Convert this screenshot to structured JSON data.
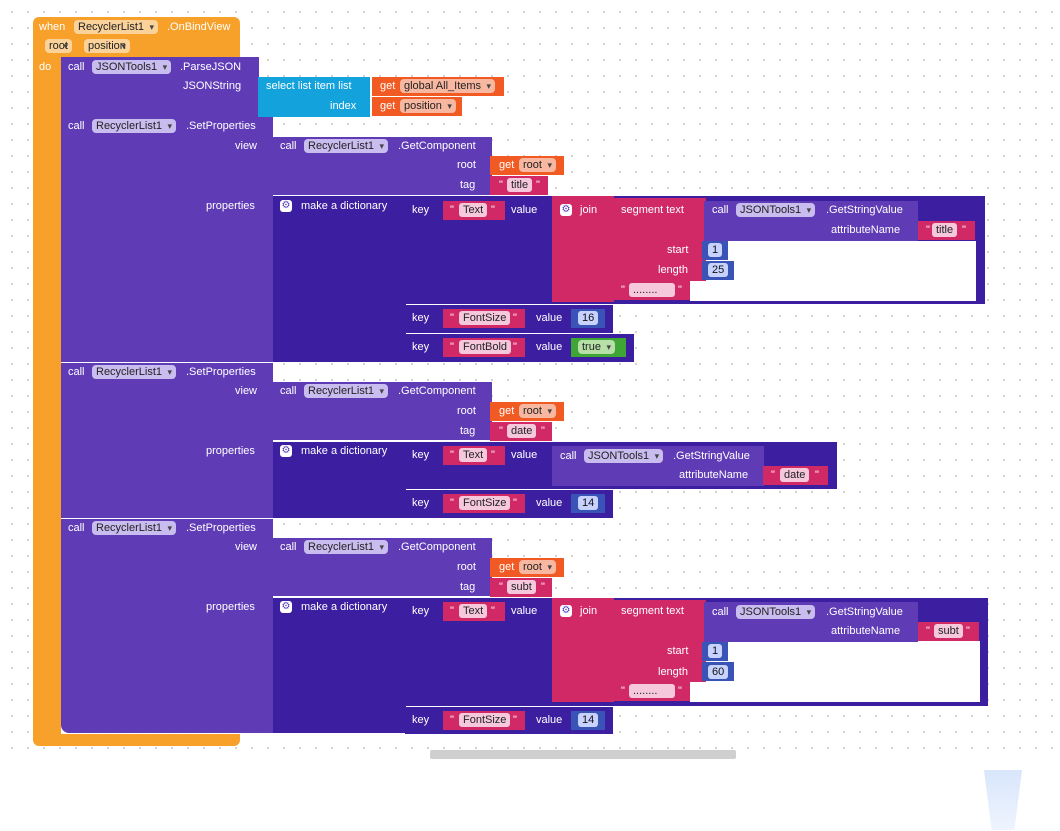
{
  "event": {
    "when": "when",
    "component": "RecyclerList1",
    "event": ".OnBindView",
    "params": [
      "root",
      "position"
    ],
    "do": "do"
  },
  "parse": {
    "call": "call",
    "component": "JSONTools1",
    "method": ".ParseJSON",
    "arg_label": "JSONString",
    "select": "select list item  list",
    "index_label": "index",
    "get": "get",
    "list_var": "global All_Items",
    "index_var": "position"
  },
  "sp": [
    {
      "call": "call",
      "component": "RecyclerList1",
      "method": ".SetProperties",
      "view_label": "view",
      "properties_label": "properties",
      "gc": {
        "call": "call",
        "component": "RecyclerList1",
        "method": ".GetComponent",
        "root_label": "root",
        "tag_label": "tag",
        "get": "get",
        "root_var": "root",
        "tag": "title"
      },
      "dict": "make a dictionary",
      "entries": [
        {
          "key_label": "key",
          "key": "Text",
          "value_label": "value",
          "join": "join",
          "segment": "segment  text",
          "call": "call",
          "component": "JSONTools1",
          "method": ".GetStringValue",
          "attr_label": "attributeName",
          "attr": "title",
          "start_label": "start",
          "start": "1",
          "length_label": "length",
          "length": "25",
          "suffix": "........"
        },
        {
          "key_label": "key",
          "key": "FontSize",
          "value_label": "value",
          "num": "16"
        },
        {
          "key_label": "key",
          "key": "FontBold",
          "value_label": "value",
          "bool": "true"
        }
      ]
    },
    {
      "call": "call",
      "component": "RecyclerList1",
      "method": ".SetProperties",
      "view_label": "view",
      "properties_label": "properties",
      "gc": {
        "call": "call",
        "component": "RecyclerList1",
        "method": ".GetComponent",
        "root_label": "root",
        "tag_label": "tag",
        "get": "get",
        "root_var": "root",
        "tag": "date"
      },
      "dict": "make a dictionary",
      "entries": [
        {
          "key_label": "key",
          "key": "Text",
          "value_label": "value",
          "call": "call",
          "component": "JSONTools1",
          "method": ".GetStringValue",
          "attr_label": "attributeName",
          "attr": "date"
        },
        {
          "key_label": "key",
          "key": "FontSize",
          "value_label": "value",
          "num": "14"
        }
      ]
    },
    {
      "call": "call",
      "component": "RecyclerList1",
      "method": ".SetProperties",
      "view_label": "view",
      "properties_label": "properties",
      "gc": {
        "call": "call",
        "component": "RecyclerList1",
        "method": ".GetComponent",
        "root_label": "root",
        "tag_label": "tag",
        "get": "get",
        "root_var": "root",
        "tag": "subt"
      },
      "dict": "make a dictionary",
      "entries": [
        {
          "key_label": "key",
          "key": "Text",
          "value_label": "value",
          "join": "join",
          "segment": "segment  text",
          "call": "call",
          "component": "JSONTools1",
          "method": ".GetStringValue",
          "attr_label": "attributeName",
          "attr": "subt",
          "start_label": "start",
          "start": "1",
          "length_label": "length",
          "length": "60",
          "suffix": "........"
        },
        {
          "key_label": "key",
          "key": "FontSize",
          "value_label": "value",
          "num": "14"
        }
      ]
    }
  ],
  "quote": "\"",
  "colors": {
    "event": "#f7a12a",
    "component": "#5f3bb6",
    "dictionary": "#3c1fa0",
    "get": "#f15a22",
    "text": "#d02966",
    "list": "#14a2dc",
    "math": "#3a53b6",
    "logic": "#3fa535"
  }
}
